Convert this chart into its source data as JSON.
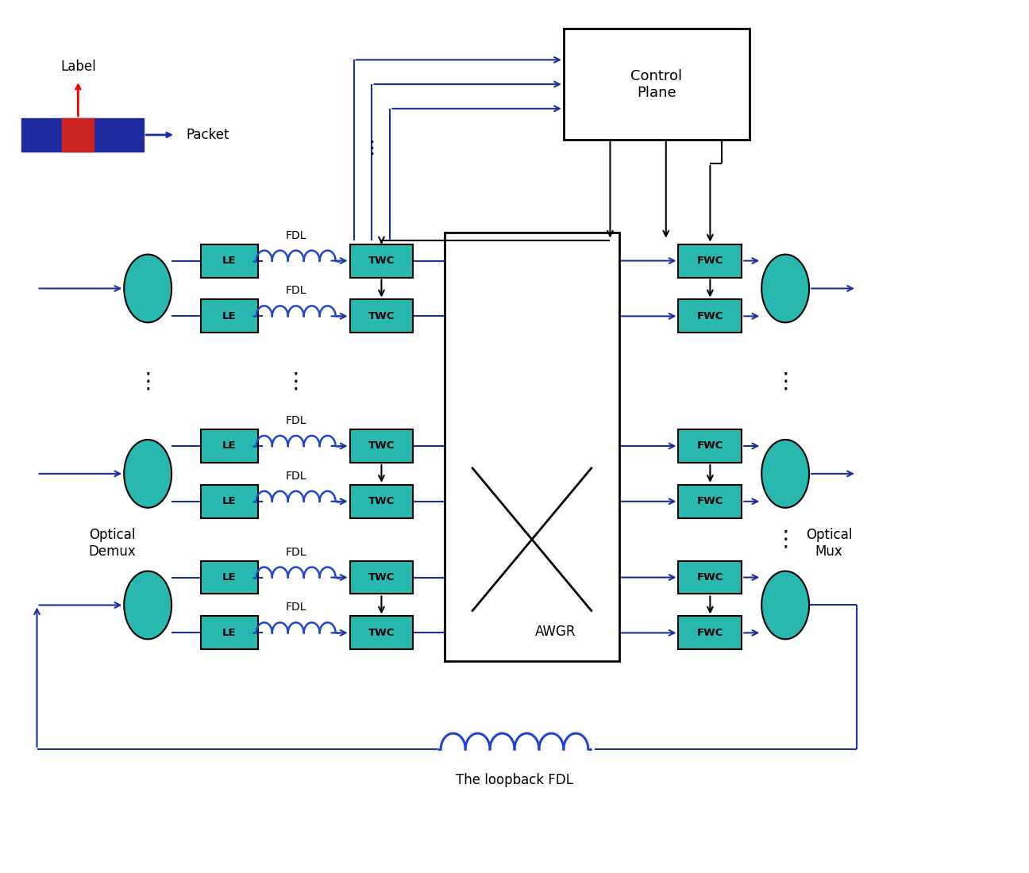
{
  "bg_color": "#ffffff",
  "teal_color": "#29b8b0",
  "blue_color": "#1a3099",
  "black_color": "#000000",
  "figsize": [
    12.96,
    11.0
  ],
  "dpi": 100,
  "xlim": [
    0,
    12.96
  ],
  "ylim": [
    0,
    11.0
  ]
}
